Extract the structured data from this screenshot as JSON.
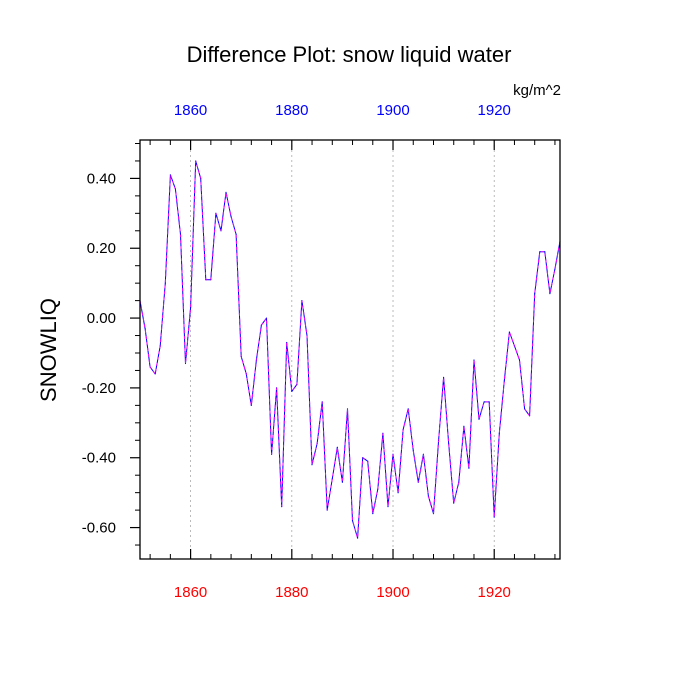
{
  "chart_data": {
    "type": "line",
    "title": "Difference Plot: snow liquid water",
    "units": "kg/m^2",
    "ylabel": "SNOWLIQ",
    "xlabel": "",
    "xlim": [
      1850,
      1933
    ],
    "ylim": [
      -0.69,
      0.51
    ],
    "x_ticks": [
      1860,
      1880,
      1900,
      1920
    ],
    "x_tick_labels_bottom": [
      "1860",
      "1880",
      "1900",
      "1920"
    ],
    "x_tick_labels_top": [
      "1860",
      "1880",
      "1900",
      "1920"
    ],
    "y_ticks": [
      0.4,
      0.2,
      0.0,
      -0.2,
      -0.4,
      -0.6
    ],
    "y_tick_labels": [
      "0.40",
      "0.20",
      "0.00",
      "-0.20",
      "-0.40",
      "-0.60"
    ],
    "grid": "vertical dashed at x ticks",
    "colors": {
      "bottom_axis_labels": "#ff0000",
      "top_axis_labels": "#0000ff",
      "series_a": "#0000ff",
      "series_b": "#ff00ff",
      "grid": "#aaaaaa",
      "frame": "#000000"
    },
    "x": [
      1850,
      1851,
      1852,
      1853,
      1854,
      1855,
      1856,
      1857,
      1858,
      1859,
      1860,
      1861,
      1862,
      1863,
      1864,
      1865,
      1866,
      1867,
      1868,
      1869,
      1870,
      1871,
      1872,
      1873,
      1874,
      1875,
      1876,
      1877,
      1878,
      1879,
      1880,
      1881,
      1882,
      1883,
      1884,
      1885,
      1886,
      1887,
      1888,
      1889,
      1890,
      1891,
      1892,
      1893,
      1894,
      1895,
      1896,
      1897,
      1898,
      1899,
      1900,
      1901,
      1902,
      1903,
      1904,
      1905,
      1906,
      1907,
      1908,
      1909,
      1910,
      1911,
      1912,
      1913,
      1914,
      1915,
      1916,
      1917,
      1918,
      1919,
      1920,
      1921,
      1922,
      1923,
      1924,
      1925,
      1926,
      1927,
      1928,
      1929,
      1930,
      1931,
      1932,
      1933
    ],
    "series": [
      {
        "name": "snow liquid water difference",
        "values": [
          0.05,
          -0.03,
          -0.14,
          -0.16,
          -0.08,
          0.1,
          0.41,
          0.37,
          0.24,
          -0.13,
          0.03,
          0.45,
          0.4,
          0.11,
          0.11,
          0.3,
          0.25,
          0.36,
          0.29,
          0.24,
          -0.11,
          -0.16,
          -0.25,
          -0.12,
          -0.02,
          0.0,
          -0.39,
          -0.2,
          -0.54,
          -0.07,
          -0.21,
          -0.19,
          0.05,
          -0.05,
          -0.42,
          -0.36,
          -0.24,
          -0.55,
          -0.46,
          -0.37,
          -0.47,
          -0.26,
          -0.58,
          -0.63,
          -0.4,
          -0.41,
          -0.56,
          -0.49,
          -0.33,
          -0.54,
          -0.39,
          -0.5,
          -0.32,
          -0.26,
          -0.38,
          -0.47,
          -0.39,
          -0.51,
          -0.56,
          -0.35,
          -0.17,
          -0.36,
          -0.53,
          -0.47,
          -0.31,
          -0.43,
          -0.12,
          -0.29,
          -0.24,
          -0.24,
          -0.57,
          -0.33,
          -0.18,
          -0.04,
          -0.08,
          -0.12,
          -0.26,
          -0.28,
          0.07,
          0.19,
          0.19,
          0.07,
          0.14,
          0.22
        ]
      }
    ]
  }
}
